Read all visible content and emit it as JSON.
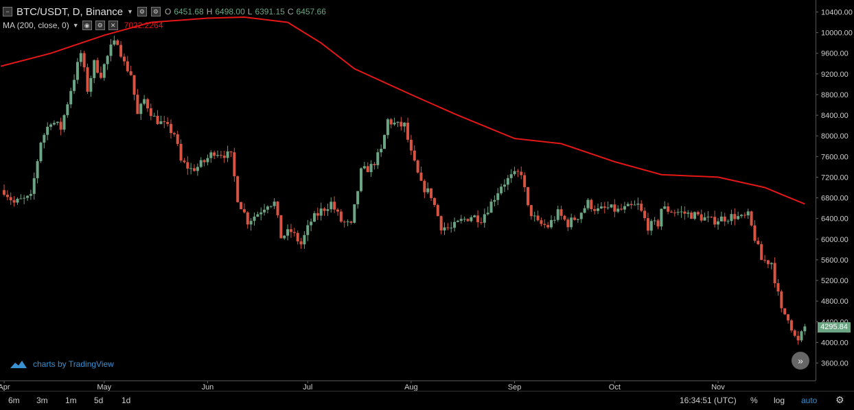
{
  "header": {
    "symbol": "BTC/USDT, D, Binance",
    "ohlc": [
      {
        "label": "O",
        "value": "6451.68"
      },
      {
        "label": "H",
        "value": "6498.00"
      },
      {
        "label": "L",
        "value": "6391.15"
      },
      {
        "label": "C",
        "value": "6457.66"
      }
    ]
  },
  "indicator": {
    "name": "MA (200, close, 0)",
    "value": "7022.2264",
    "color": "#e51717"
  },
  "branding": "charts by TradingView",
  "last_price": "4295.84",
  "colors": {
    "up": "#6ba583",
    "down": "#d75442",
    "ma": "#e51717",
    "background": "#000000"
  },
  "bottom_bar": {
    "ranges": [
      "6m",
      "3m",
      "1m",
      "5d",
      "1d"
    ],
    "time": "16:34:51 (UTC)",
    "percent": "%",
    "log": "log",
    "auto": "auto"
  },
  "chart_data": {
    "type": "candlestick",
    "y_ticks": [
      "10400.00",
      "10000.00",
      "9600.00",
      "9200.00",
      "8800.00",
      "8400.00",
      "8000.00",
      "7600.00",
      "7200.00",
      "6800.00",
      "6400.00",
      "6000.00",
      "5600.00",
      "5200.00",
      "4800.00",
      "4400.00",
      "4000.00",
      "3600.00"
    ],
    "x_ticks": [
      "Apr",
      "May",
      "Jun",
      "Jul",
      "Aug",
      "Sep",
      "Oct",
      "Nov"
    ],
    "ylim": [
      3300,
      10600
    ],
    "close_path": [
      [
        "2018-04-01",
        6950
      ],
      [
        "2018-04-04",
        6700
      ],
      [
        "2018-04-06",
        6750
      ],
      [
        "2018-04-09",
        6800
      ],
      [
        "2018-04-12",
        7900
      ],
      [
        "2018-04-15",
        8300
      ],
      [
        "2018-04-18",
        8150
      ],
      [
        "2018-04-21",
        8900
      ],
      [
        "2018-04-24",
        9600
      ],
      [
        "2018-04-26",
        8900
      ],
      [
        "2018-04-28",
        9400
      ],
      [
        "2018-04-30",
        9200
      ],
      [
        "2018-05-03",
        9700
      ],
      [
        "2018-05-05",
        9850
      ],
      [
        "2018-05-07",
        9400
      ],
      [
        "2018-05-09",
        9200
      ],
      [
        "2018-05-11",
        8400
      ],
      [
        "2018-05-13",
        8700
      ],
      [
        "2018-05-16",
        8350
      ],
      [
        "2018-05-19",
        8200
      ],
      [
        "2018-05-22",
        8050
      ],
      [
        "2018-05-24",
        7500
      ],
      [
        "2018-05-27",
        7350
      ],
      [
        "2018-05-29",
        7400
      ],
      [
        "2018-05-31",
        7500
      ],
      [
        "2018-06-03",
        7700
      ],
      [
        "2018-06-06",
        7650
      ],
      [
        "2018-06-08",
        7600
      ],
      [
        "2018-06-10",
        6800
      ],
      [
        "2018-06-13",
        6350
      ],
      [
        "2018-06-16",
        6500
      ],
      [
        "2018-06-19",
        6700
      ],
      [
        "2018-06-21",
        6700
      ],
      [
        "2018-06-23",
        6050
      ],
      [
        "2018-06-26",
        6150
      ],
      [
        "2018-06-29",
        5900
      ],
      [
        "2018-07-02",
        6350
      ],
      [
        "2018-07-05",
        6550
      ],
      [
        "2018-07-08",
        6700
      ],
      [
        "2018-07-11",
        6350
      ],
      [
        "2018-07-14",
        6250
      ],
      [
        "2018-07-17",
        7300
      ],
      [
        "2018-07-20",
        7400
      ],
      [
        "2018-07-23",
        7700
      ],
      [
        "2018-07-25",
        8300
      ],
      [
        "2018-07-28",
        8200
      ],
      [
        "2018-07-30",
        8200
      ],
      [
        "2018-08-01",
        7650
      ],
      [
        "2018-08-04",
        7050
      ],
      [
        "2018-08-07",
        6850
      ],
      [
        "2018-08-10",
        6250
      ],
      [
        "2018-08-13",
        6200
      ],
      [
        "2018-08-16",
        6350
      ],
      [
        "2018-08-19",
        6450
      ],
      [
        "2018-08-22",
        6400
      ],
      [
        "2018-08-25",
        6700
      ],
      [
        "2018-08-28",
        7050
      ],
      [
        "2018-08-31",
        7200
      ],
      [
        "2018-09-03",
        7300
      ],
      [
        "2018-09-05",
        6600
      ],
      [
        "2018-09-08",
        6300
      ],
      [
        "2018-09-11",
        6250
      ],
      [
        "2018-09-14",
        6500
      ],
      [
        "2018-09-17",
        6300
      ],
      [
        "2018-09-20",
        6450
      ],
      [
        "2018-09-23",
        6700
      ],
      [
        "2018-09-26",
        6550
      ],
      [
        "2018-09-29",
        6600
      ],
      [
        "2018-10-02",
        6550
      ],
      [
        "2018-10-05",
        6600
      ],
      [
        "2018-10-08",
        6650
      ],
      [
        "2018-10-11",
        6250
      ],
      [
        "2018-10-14",
        6300
      ],
      [
        "2018-10-15",
        6600
      ],
      [
        "2018-10-18",
        6550
      ],
      [
        "2018-10-22",
        6500
      ],
      [
        "2018-10-26",
        6450
      ],
      [
        "2018-10-30",
        6350
      ],
      [
        "2018-11-02",
        6400
      ],
      [
        "2018-11-06",
        6450
      ],
      [
        "2018-11-08",
        6400
      ],
      [
        "2018-11-10",
        6450
      ],
      [
        "2018-11-14",
        5600
      ],
      [
        "2018-11-17",
        5550
      ],
      [
        "2018-11-20",
        4600
      ],
      [
        "2018-11-22",
        4500
      ],
      [
        "2018-11-24",
        4100
      ],
      [
        "2018-11-25",
        4000
      ],
      [
        "2018-11-27",
        4300
      ]
    ],
    "ma_path": [
      [
        "2018-03-31",
        9350
      ],
      [
        "2018-04-15",
        9600
      ],
      [
        "2018-05-01",
        9950
      ],
      [
        "2018-05-15",
        10200
      ],
      [
        "2018-06-01",
        10280
      ],
      [
        "2018-06-12",
        10300
      ],
      [
        "2018-06-25",
        10200
      ],
      [
        "2018-07-05",
        9800
      ],
      [
        "2018-07-15",
        9300
      ],
      [
        "2018-08-01",
        8800
      ],
      [
        "2018-08-15",
        8400
      ],
      [
        "2018-09-01",
        7950
      ],
      [
        "2018-09-15",
        7850
      ],
      [
        "2018-10-01",
        7500
      ],
      [
        "2018-10-15",
        7250
      ],
      [
        "2018-11-01",
        7200
      ],
      [
        "2018-11-15",
        7000
      ],
      [
        "2018-11-27",
        6680
      ]
    ]
  }
}
